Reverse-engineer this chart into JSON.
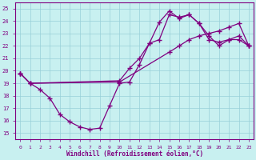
{
  "xlabel": "Windchill (Refroidissement éolien,°C)",
  "bg_color": "#c8f0f0",
  "line_color": "#800080",
  "grid_color": "#98d0d8",
  "xlim": [
    -0.5,
    23.5
  ],
  "ylim": [
    14.5,
    25.5
  ],
  "xticks": [
    0,
    1,
    2,
    3,
    4,
    5,
    6,
    7,
    8,
    9,
    10,
    11,
    12,
    13,
    14,
    15,
    16,
    17,
    18,
    19,
    20,
    21,
    22,
    23
  ],
  "yticks": [
    15,
    16,
    17,
    18,
    19,
    20,
    21,
    22,
    23,
    24,
    25
  ],
  "series": [
    {
      "x": [
        0,
        1,
        2,
        3,
        4,
        5,
        6,
        7,
        8,
        9,
        10,
        11,
        12,
        13,
        14,
        15,
        16,
        17,
        18,
        19,
        20,
        21,
        22,
        23
      ],
      "y": [
        19.8,
        19.0,
        18.5,
        17.8,
        16.5,
        15.9,
        15.5,
        15.3,
        15.4,
        17.2,
        19.0,
        19.1,
        20.5,
        22.2,
        23.9,
        24.8,
        24.2,
        24.5,
        23.8,
        22.5,
        22.3,
        22.5,
        22.5,
        22.0
      ]
    },
    {
      "x": [
        0,
        1,
        10,
        15,
        16,
        17,
        18,
        19,
        20,
        21,
        22,
        23
      ],
      "y": [
        19.8,
        19.0,
        19.1,
        21.5,
        22.0,
        22.5,
        22.8,
        23.0,
        23.2,
        23.5,
        23.8,
        22.0
      ]
    },
    {
      "x": [
        0,
        1,
        10,
        11,
        12,
        13,
        14,
        15,
        16,
        17,
        18,
        19,
        20,
        21,
        22,
        23
      ],
      "y": [
        19.8,
        19.0,
        19.2,
        20.2,
        21.0,
        22.2,
        22.5,
        24.5,
        24.3,
        24.5,
        23.8,
        22.8,
        22.0,
        22.5,
        22.8,
        22.0
      ]
    }
  ]
}
